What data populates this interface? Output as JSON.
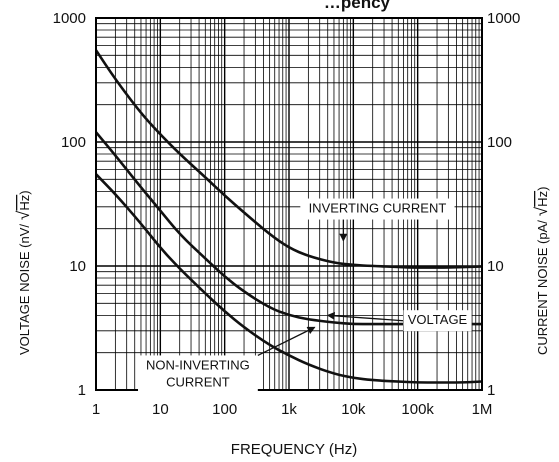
{
  "chart_data": {
    "type": "line",
    "title": "…pency",
    "xlabel": "FREQUENCY (Hz)",
    "ylabel_left": {
      "text_before": "VOLTAGE NOISE (nV/",
      "radical": "√",
      "radicand": "Hz",
      "text_after": ")"
    },
    "ylabel_right": {
      "text_before": "CURRENT NOISE (pA/",
      "radical": "√",
      "radicand": "Hz",
      "text_after": ")"
    },
    "x_scale": "log",
    "y_scale": "log",
    "xlim": [
      1,
      1000000
    ],
    "ylim": [
      1,
      1000
    ],
    "grid": true,
    "x_ticks": [
      {
        "value": 1,
        "label": "1"
      },
      {
        "value": 10,
        "label": "10"
      },
      {
        "value": 100,
        "label": "100"
      },
      {
        "value": 1000,
        "label": "1k"
      },
      {
        "value": 10000,
        "label": "10k"
      },
      {
        "value": 100000,
        "label": "100k"
      },
      {
        "value": 1000000,
        "label": "1M"
      }
    ],
    "y_ticks_left": [
      {
        "value": 1,
        "label": "1"
      },
      {
        "value": 10,
        "label": "10"
      },
      {
        "value": 100,
        "label": "100"
      },
      {
        "value": 1000,
        "label": "1000"
      }
    ],
    "y_ticks_right": [
      {
        "value": 1,
        "label": "1"
      },
      {
        "value": 10,
        "label": "10"
      },
      {
        "value": 100,
        "label": "100"
      },
      {
        "value": 1000,
        "label": "1000"
      }
    ],
    "series": [
      {
        "x": [
          1,
          2,
          5,
          10,
          20,
          50,
          100,
          200,
          500,
          1000,
          2000,
          5000,
          10000,
          20000,
          50000,
          100000,
          200000,
          500000,
          1000000
        ],
        "values": [
          550,
          320,
          170,
          115,
          80,
          52,
          37,
          27,
          18,
          14,
          12,
          10.6,
          10.2,
          10,
          9.8,
          9.7,
          9.7,
          9.8,
          9.9
        ]
      },
      {
        "x": [
          1,
          2,
          5,
          10,
          20,
          50,
          100,
          200,
          500,
          1000,
          2000,
          5000,
          10000,
          20000,
          50000,
          100000,
          200000,
          500000,
          1000000
        ],
        "values": [
          120,
          78,
          43,
          28,
          18,
          11.5,
          8.2,
          6.2,
          4.6,
          4,
          3.7,
          3.5,
          3.4,
          3.4,
          3.4,
          3.4,
          3.4,
          3.4,
          3.4
        ]
      },
      {
        "x": [
          1,
          2,
          5,
          10,
          20,
          50,
          100,
          200,
          500,
          1000,
          2000,
          5000,
          10000,
          20000,
          50000,
          100000,
          200000,
          500000,
          1000000
        ],
        "values": [
          55,
          38,
          22,
          14,
          9.5,
          6,
          4.3,
          3.2,
          2.3,
          1.9,
          1.6,
          1.35,
          1.25,
          1.2,
          1.17,
          1.15,
          1.15,
          1.15,
          1.17
        ]
      }
    ],
    "annotations": [
      {
        "id": "inverting",
        "lines": [
          "INVERTING CURRENT"
        ],
        "box_x": 1500,
        "box_y": 35,
        "arrow_to": [
          7000,
          16
        ]
      },
      {
        "id": "voltage",
        "lines": [
          "VOLTAGE"
        ],
        "box_x": 60000,
        "box_y": 4.4,
        "arrow_to": [
          4000,
          4.0
        ]
      },
      {
        "id": "noninverting",
        "lines": [
          "NON-INVERTING",
          "CURRENT"
        ],
        "box_x": 4.5,
        "box_y": 1.9,
        "arrow_to": [
          2500,
          3.2
        ]
      }
    ]
  }
}
